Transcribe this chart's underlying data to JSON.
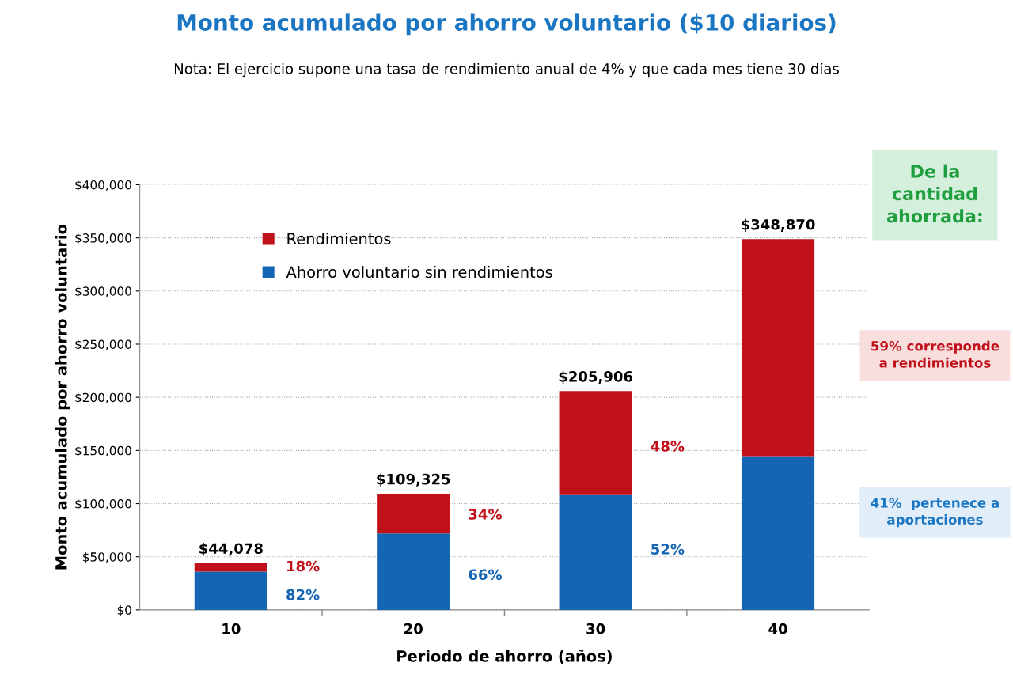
{
  "chart_data": {
    "type": "bar",
    "stacked": true,
    "title": "Monto acumulado por ahorro voluntario ($10 diarios)",
    "subtitle": "Nota: El ejercicio supone una tasa de rendimiento anual de 4% y que cada mes tiene 30 días",
    "xlabel": "Periodo de ahorro (años)",
    "ylabel": "Monto acumulado por ahorro voluntario",
    "categories": [
      "10",
      "20",
      "30",
      "40"
    ],
    "series": [
      {
        "name": "Ahorro voluntario sin rendimientos",
        "color": "#1565b5",
        "values": [
          36000,
          72000,
          108000,
          144000
        ]
      },
      {
        "name": "Rendimientos",
        "color": "#c0101a",
        "values": [
          8078,
          37325,
          97906,
          204870
        ]
      }
    ],
    "totals": [
      "$44,078",
      "$109,325",
      "$205,906",
      "$348,870"
    ],
    "ylim": [
      0,
      400000
    ],
    "yticks": [
      {
        "value": 0,
        "label": "$0"
      },
      {
        "value": 50000,
        "label": "$50,000"
      },
      {
        "value": 100000,
        "label": "$100,000"
      },
      {
        "value": 150000,
        "label": "$150,000"
      },
      {
        "value": 200000,
        "label": "$200,000"
      },
      {
        "value": 250000,
        "label": "$250,000"
      },
      {
        "value": 300000,
        "label": "$300,000"
      },
      {
        "value": 350000,
        "label": "$350,000"
      },
      {
        "value": 400000,
        "label": "$400,000"
      }
    ],
    "grid": "y",
    "legend": "top left",
    "annotations": [
      "De la\ncantidad\nahorrada:",
      "59% corresponde\na rendimientos",
      "41%  pertenece a\naportaciones",
      "18%",
      "82%",
      "34%",
      "66%",
      "48%",
      "52%"
    ]
  }
}
